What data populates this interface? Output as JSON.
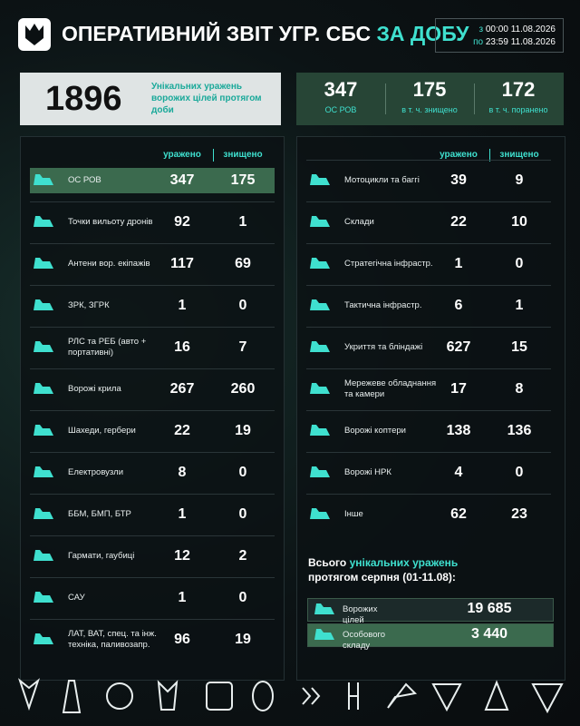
{
  "header": {
    "title": "ОПЕРАТИВНИЙ ЗВІТ УГР. СБС",
    "title_accent": "ЗА ДОБУ",
    "period": {
      "from_word": "з",
      "from_time": "00:00",
      "from_date": "11.08.2026",
      "to_word": "по",
      "to_time": "23:59",
      "to_date": "11.08.2026"
    }
  },
  "summary": {
    "total": "1896",
    "total_text": "Унікальних уражень ворожих цілей протягом доби",
    "stats": [
      {
        "value": "347",
        "label": "ОС РОВ"
      },
      {
        "value": "175",
        "label": "в т. ч. знищено"
      },
      {
        "value": "172",
        "label": "в т. ч. поранено"
      }
    ]
  },
  "left_table": {
    "columns": [
      "уражено",
      "знищено"
    ],
    "rows": [
      [
        "ОС РОВ",
        "347",
        "175"
      ],
      [
        "Точки вильоту дронів",
        "92",
        "1"
      ],
      [
        "Антени вор. екіпажів",
        "117",
        "69"
      ],
      [
        "ЗРК, ЗГРК",
        "1",
        "0"
      ],
      [
        "РЛС та РЕБ (авто + портативні)",
        "16",
        "7"
      ],
      [
        "Ворожі крила",
        "267",
        "260"
      ],
      [
        "Шахеди, гербери",
        "22",
        "19"
      ],
      [
        "Електровузли",
        "8",
        "0"
      ],
      [
        "ББМ, БМП, БТР",
        "1",
        "0"
      ],
      [
        "Гармати, гаубиці",
        "12",
        "2"
      ],
      [
        "САУ",
        "1",
        "0"
      ],
      [
        "ЛАТ, ВАТ, спец. та інж. техніка, паливозапр.",
        "96",
        "19"
      ]
    ]
  },
  "right_table": {
    "columns": [
      "уражено",
      "знищено"
    ],
    "rows": [
      [
        "Мотоцикли та баггі",
        "39",
        "9"
      ],
      [
        "Склади",
        "22",
        "10"
      ],
      [
        "Стратегічна інфрастр.",
        "1",
        "0"
      ],
      [
        "Тактична інфрастр.",
        "6",
        "1"
      ],
      [
        "Укриття та бліндажі",
        "627",
        "15"
      ],
      [
        "Мережеве обладнання та камери",
        "17",
        "8"
      ],
      [
        "Ворожі коптери",
        "138",
        "136"
      ],
      [
        "Ворожі НРК",
        "4",
        "0"
      ],
      [
        "Інше",
        "62",
        "23"
      ]
    ]
  },
  "monthly": {
    "title_start": "Всього",
    "title_accent": "унікальних уражень",
    "title_end": "протягом серпня (01-11.08):",
    "rows": [
      [
        "Ворожих цілей",
        "19 685"
      ],
      [
        "Особового складу",
        "3 440"
      ]
    ]
  }
}
